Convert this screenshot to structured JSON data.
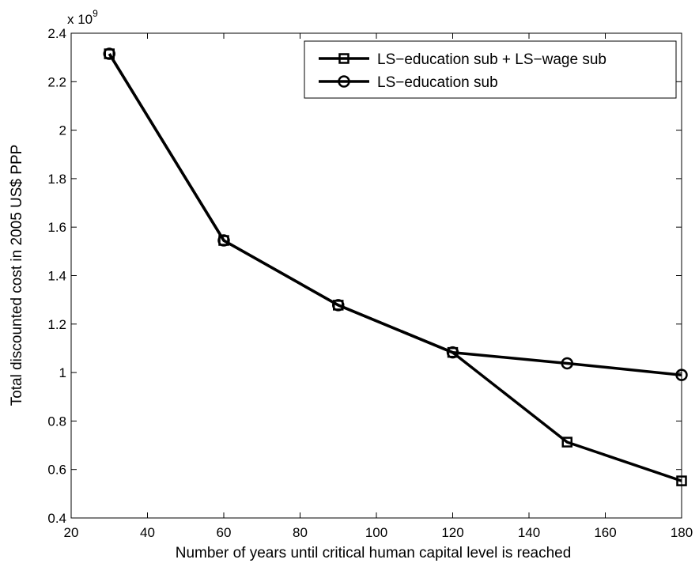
{
  "chart_data": {
    "type": "line",
    "xlabel": "Number of years until critical human capital level is reached",
    "ylabel": "Total discounted cost in 2005 US$ PPP",
    "y_multiplier_base": "x 10",
    "y_multiplier_exp": "9",
    "xlim": [
      20,
      180
    ],
    "ylim": [
      0.4,
      2.4
    ],
    "xticks": [
      20,
      40,
      60,
      80,
      100,
      120,
      140,
      160,
      180
    ],
    "yticks": [
      0.4,
      0.6,
      0.8,
      1,
      1.2,
      1.4,
      1.6,
      1.8,
      2,
      2.2,
      2.4
    ],
    "xtick_labels": [
      "20",
      "40",
      "60",
      "80",
      "100",
      "120",
      "140",
      "160",
      "180"
    ],
    "ytick_labels": [
      "0.4",
      "0.6",
      "0.8",
      "1",
      "1.2",
      "1.4",
      "1.6",
      "1.8",
      "2",
      "2.2",
      "2.4"
    ],
    "grid": false,
    "legend_position": "top-right",
    "x": [
      30,
      60,
      90,
      120,
      150,
      180
    ],
    "series": [
      {
        "name": "LS−education sub + LS−wage sub",
        "marker": "square",
        "color": "#000000",
        "values": [
          2.315,
          1.545,
          1.278,
          1.083,
          0.713,
          0.553
        ]
      },
      {
        "name": "LS−education sub",
        "marker": "circle",
        "color": "#000000",
        "values": [
          2.315,
          1.545,
          1.278,
          1.083,
          1.038,
          0.99
        ]
      }
    ]
  }
}
